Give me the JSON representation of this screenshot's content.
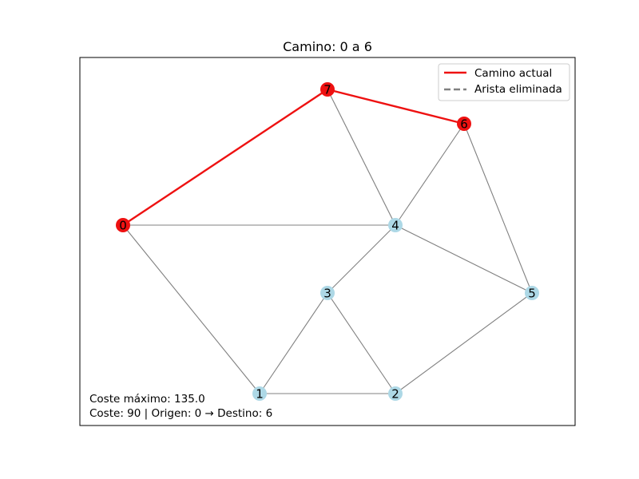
{
  "title": "Camino: 0 a 6",
  "colors": {
    "path": "#ee1111",
    "node_default": "#add8e6",
    "node_path": "#ee1111",
    "edge": "#808080",
    "removed_edge": "#808080"
  },
  "graph": {
    "nodes": [
      {
        "id": "0",
        "on_path": true
      },
      {
        "id": "1",
        "on_path": false
      },
      {
        "id": "2",
        "on_path": false
      },
      {
        "id": "3",
        "on_path": false
      },
      {
        "id": "4",
        "on_path": false
      },
      {
        "id": "5",
        "on_path": false
      },
      {
        "id": "6",
        "on_path": true
      },
      {
        "id": "7",
        "on_path": true
      }
    ],
    "edges": [
      {
        "source": "0",
        "target": "4",
        "on_path": false
      },
      {
        "source": "0",
        "target": "1",
        "on_path": false
      },
      {
        "source": "7",
        "target": "4",
        "on_path": false
      },
      {
        "source": "6",
        "target": "4",
        "on_path": false
      },
      {
        "source": "6",
        "target": "5",
        "on_path": false
      },
      {
        "source": "4",
        "target": "3",
        "on_path": false
      },
      {
        "source": "4",
        "target": "5",
        "on_path": false
      },
      {
        "source": "3",
        "target": "1",
        "on_path": false
      },
      {
        "source": "3",
        "target": "2",
        "on_path": false
      },
      {
        "source": "1",
        "target": "2",
        "on_path": false
      },
      {
        "source": "2",
        "target": "5",
        "on_path": false
      },
      {
        "source": "0",
        "target": "7",
        "on_path": true
      },
      {
        "source": "7",
        "target": "6",
        "on_path": true
      }
    ]
  },
  "legend": {
    "location": "upper-right",
    "entries": [
      {
        "label": "Camino actual",
        "style": "solid",
        "color": "#ee1111"
      },
      {
        "label": "Arista eliminada",
        "style": "dashed",
        "color": "#808080"
      }
    ]
  },
  "info": {
    "line1": "Coste máximo: 135.0",
    "line2": "Coste: 90 | Origen: 0 → Destino: 6"
  }
}
